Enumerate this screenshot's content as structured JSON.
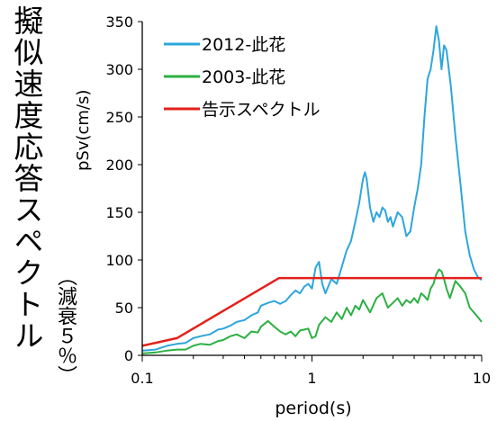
{
  "figure": {
    "title_vertical": "擬似速度応答スペクトル",
    "subtitle_vertical": "（減衰５％）"
  },
  "chart_data": {
    "type": "line",
    "xlabel": "period(s)",
    "ylabel": "pSv(cm/s)",
    "xscale": "log",
    "xlim": [
      0.1,
      10
    ],
    "ylim": [
      0,
      350
    ],
    "x_ticks": [
      {
        "value": 0.1,
        "label": "0.1"
      },
      {
        "value": 1,
        "label": "1"
      },
      {
        "value": 10,
        "label": "10"
      }
    ],
    "y_ticks": [
      0,
      50,
      100,
      150,
      200,
      250,
      300,
      350
    ],
    "grid": false,
    "legend_position": "top-left",
    "series": [
      {
        "name": "2012-此花",
        "color": "#2ea6dc",
        "x": [
          0.1,
          0.12,
          0.14,
          0.16,
          0.18,
          0.2,
          0.22,
          0.25,
          0.28,
          0.3,
          0.33,
          0.36,
          0.4,
          0.44,
          0.48,
          0.5,
          0.55,
          0.6,
          0.65,
          0.7,
          0.75,
          0.8,
          0.85,
          0.9,
          0.95,
          1.0,
          1.05,
          1.1,
          1.15,
          1.2,
          1.3,
          1.4,
          1.5,
          1.6,
          1.7,
          1.8,
          1.9,
          2.0,
          2.05,
          2.1,
          2.2,
          2.3,
          2.4,
          2.5,
          2.6,
          2.7,
          2.8,
          2.9,
          3.0,
          3.2,
          3.4,
          3.6,
          3.8,
          4.0,
          4.2,
          4.4,
          4.6,
          4.8,
          5.0,
          5.2,
          5.4,
          5.6,
          5.8,
          6.0,
          6.2,
          6.4,
          6.6,
          7.0,
          7.5,
          8.0,
          8.5,
          9.0,
          9.5,
          10.0
        ],
        "values": [
          5,
          6,
          10,
          12,
          13,
          18,
          20,
          22,
          27,
          28,
          31,
          35,
          37,
          42,
          45,
          52,
          55,
          57,
          54,
          57,
          63,
          68,
          65,
          72,
          75,
          70,
          92,
          98,
          75,
          65,
          80,
          75,
          93,
          110,
          120,
          140,
          160,
          185,
          192,
          185,
          155,
          140,
          150,
          145,
          155,
          152,
          140,
          145,
          135,
          150,
          145,
          125,
          130,
          155,
          175,
          200,
          250,
          290,
          300,
          320,
          345,
          330,
          300,
          325,
          320,
          300,
          280,
          230,
          180,
          130,
          105,
          90,
          82,
          79
        ]
      },
      {
        "name": "2003-此花",
        "color": "#2db043",
        "x": [
          0.1,
          0.12,
          0.14,
          0.16,
          0.18,
          0.2,
          0.22,
          0.25,
          0.28,
          0.3,
          0.33,
          0.36,
          0.4,
          0.44,
          0.48,
          0.5,
          0.55,
          0.6,
          0.65,
          0.7,
          0.75,
          0.8,
          0.85,
          0.9,
          0.95,
          1.0,
          1.05,
          1.1,
          1.2,
          1.3,
          1.4,
          1.5,
          1.6,
          1.7,
          1.8,
          1.9,
          2.0,
          2.2,
          2.4,
          2.6,
          2.8,
          3.0,
          3.2,
          3.4,
          3.6,
          3.8,
          4.0,
          4.2,
          4.4,
          4.6,
          4.8,
          5.0,
          5.2,
          5.4,
          5.6,
          5.8,
          6.0,
          6.2,
          6.5,
          7.0,
          7.5,
          8.0,
          8.5,
          9.0,
          9.5,
          10.0
        ],
        "values": [
          2,
          3,
          5,
          6,
          6,
          10,
          12,
          11,
          15,
          16,
          20,
          22,
          18,
          25,
          24,
          30,
          36,
          30,
          25,
          22,
          25,
          20,
          26,
          27,
          28,
          18,
          20,
          32,
          40,
          35,
          45,
          38,
          50,
          42,
          52,
          48,
          58,
          45,
          60,
          65,
          50,
          55,
          60,
          52,
          58,
          55,
          60,
          55,
          65,
          62,
          58,
          70,
          75,
          85,
          90,
          88,
          80,
          70,
          60,
          78,
          72,
          65,
          50,
          45,
          40,
          35
        ]
      },
      {
        "name": "告示スペクトル",
        "color": "#e3201b",
        "x": [
          0.1,
          0.16,
          0.64,
          10
        ],
        "values": [
          10,
          18,
          81,
          81
        ]
      }
    ]
  }
}
